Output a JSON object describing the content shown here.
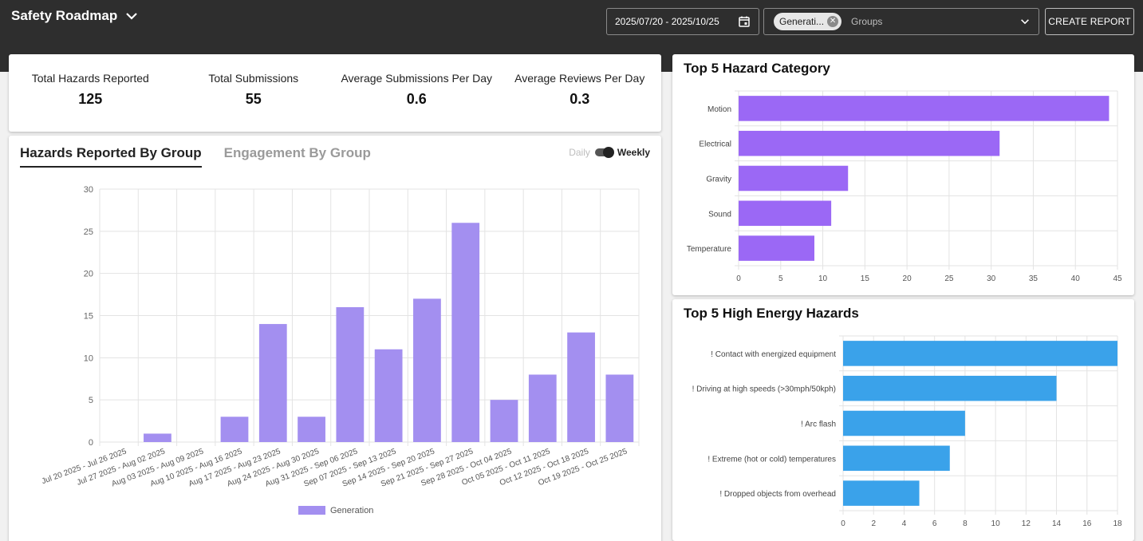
{
  "header": {
    "app_title": "Safety Roadmap",
    "date_range": "2025/07/20 - 2025/10/25",
    "group_chip": "Generati...",
    "group_placeholder": "Groups",
    "create_report_label": "CREATE REPORT"
  },
  "stats": [
    {
      "label": "Total Hazards Reported",
      "value": "125"
    },
    {
      "label": "Total Submissions",
      "value": "55"
    },
    {
      "label": "Average Submissions Per Day",
      "value": "0.6"
    },
    {
      "label": "Average Reviews Per Day",
      "value": "0.3"
    }
  ],
  "main": {
    "tabs": [
      {
        "label": "Hazards Reported By Group",
        "active": true
      },
      {
        "label": "Engagement By Group",
        "active": false
      }
    ],
    "toggle": {
      "daily_label": "Daily",
      "weekly_label": "Weekly",
      "selected": "Weekly"
    }
  },
  "colors": {
    "bar_purple_light": "#a38ff0",
    "bar_purple": "#9b68f5",
    "bar_blue": "#3aa2ea",
    "header_bg": "#2e2e2e"
  },
  "chart_data": [
    {
      "type": "bar",
      "title": "Hazards Reported By Group",
      "categories": [
        "Jul 20 2025 - Jul 26 2025",
        "Jul 27 2025 - Aug 02 2025",
        "Aug 03 2025 - Aug 09 2025",
        "Aug 10 2025 - Aug 16 2025",
        "Aug 17 2025 - Aug 23 2025",
        "Aug 24 2025 - Aug 30 2025",
        "Aug 31 2025 - Sep 06 2025",
        "Sep 07 2025 - Sep 13 2025",
        "Sep 14 2025 - Sep 20 2025",
        "Sep 21 2025 - Sep 27 2025",
        "Sep 28 2025 - Oct 04 2025",
        "Oct 05 2025 - Oct 11 2025",
        "Oct 12 2025 - Oct 18 2025",
        "Oct 19 2025 - Oct 25 2025"
      ],
      "series": [
        {
          "name": "Generation",
          "values": [
            0,
            1,
            0,
            3,
            14,
            3,
            16,
            11,
            17,
            26,
            5,
            8,
            13,
            8
          ]
        }
      ],
      "ylim": [
        0,
        30
      ],
      "yticks": [
        0,
        5,
        10,
        15,
        20,
        25,
        30
      ],
      "legend": "bottom"
    },
    {
      "type": "bar",
      "orientation": "horizontal",
      "title": "Top 5 Hazard Category",
      "categories": [
        "Motion",
        "Electrical",
        "Gravity",
        "Sound",
        "Temperature"
      ],
      "values": [
        44,
        31,
        13,
        11,
        9
      ],
      "xlim": [
        0,
        45
      ],
      "xticks": [
        0,
        5,
        10,
        15,
        20,
        25,
        30,
        35,
        40,
        45
      ]
    },
    {
      "type": "bar",
      "orientation": "horizontal",
      "title": "Top 5 High Energy Hazards",
      "categories": [
        "! Contact with energized equipment",
        "! Driving at high speeds (>30mph/50kph)",
        "! Arc flash",
        "! Extreme (hot or cold) temperatures",
        "! Dropped objects from overhead"
      ],
      "values": [
        18,
        14,
        8,
        7,
        5
      ],
      "xlim": [
        0,
        18
      ],
      "xticks": [
        0,
        2,
        4,
        6,
        8,
        10,
        12,
        14,
        16,
        18
      ]
    }
  ]
}
